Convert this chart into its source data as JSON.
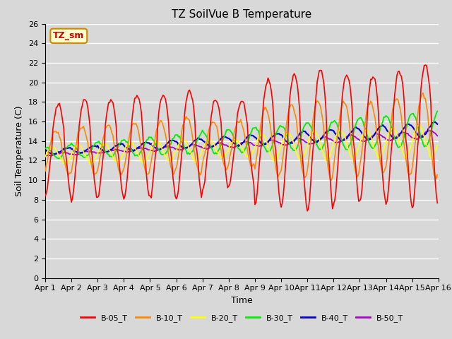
{
  "title": "TZ SoilVue B Temperature",
  "xlabel": "Time",
  "ylabel": "Soil Temperature (C)",
  "ylim": [
    0,
    26
  ],
  "background_color": "#d8d8d8",
  "plot_bg_color": "#d8d8d8",
  "grid_color": "#ffffff",
  "series": {
    "B-05_T": {
      "color": "#ff0000"
    },
    "B-10_T": {
      "color": "#ff8800"
    },
    "B-20_T": {
      "color": "#ffff00"
    },
    "B-30_T": {
      "color": "#00ee00"
    },
    "B-40_T": {
      "color": "#0000cc"
    },
    "B-50_T": {
      "color": "#aa00cc"
    }
  },
  "xtick_labels": [
    "Apr 1",
    "Apr 2",
    "Apr 3",
    "Apr 4",
    "Apr 5",
    "Apr 6",
    "Apr 7",
    "Apr 8",
    "Apr 9",
    "Apr 10",
    "Apr 11",
    "Apr 12",
    "Apr 13",
    "Apr 14",
    "Apr 15",
    "Apr 16"
  ],
  "legend_label": "TZ_sm",
  "legend_bg": "#ffffcc",
  "legend_edge": "#cc8800",
  "legend_text_color": "#cc0000",
  "title_fontsize": 11,
  "axis_fontsize": 9,
  "tick_fontsize": 8
}
